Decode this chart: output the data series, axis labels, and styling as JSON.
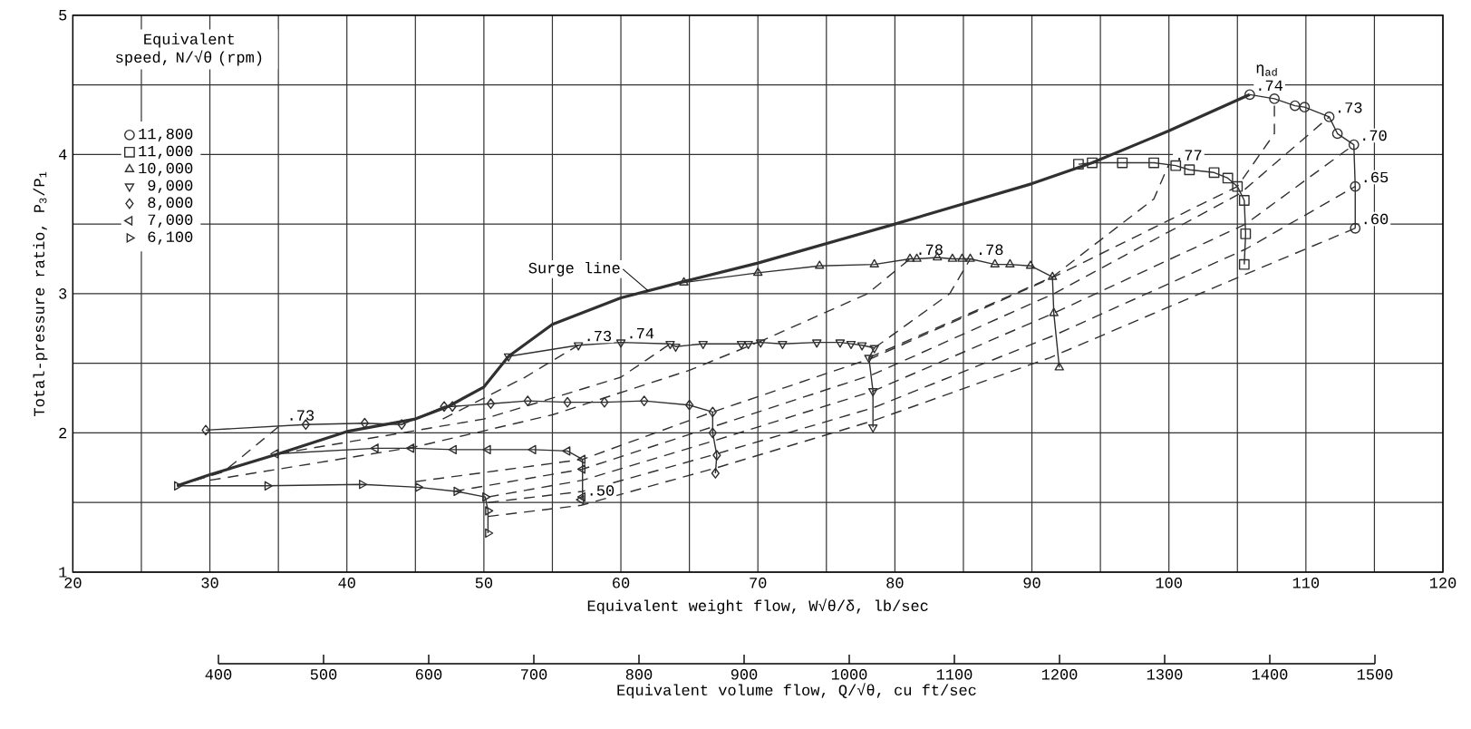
{
  "chart_data": {
    "type": "line",
    "xlabel": "Equivalent weight flow, W√θ/δ, lb/sec",
    "ylabel": "Total-pressure ratio, P$_{3}$/P$_{1}$",
    "x2label": "Equivalent volume flow, Q/√θ, cu ft/sec",
    "legend_title": "Equivalent speed, N/√θ (rpm)",
    "legend": "top left",
    "grid": true,
    "xlim": [
      20,
      120
    ],
    "ylim": [
      1,
      5
    ],
    "xticks": [
      20,
      {
        "value": 25,
        "label": null
      },
      30,
      {
        "value": 35,
        "label": null
      },
      40,
      {
        "value": 45,
        "label": null
      },
      50,
      {
        "value": 55,
        "label": null
      },
      60,
      {
        "value": 65,
        "label": null
      },
      70,
      {
        "value": 75,
        "label": null
      },
      80,
      {
        "value": 85,
        "label": null
      },
      90,
      {
        "value": 95,
        "label": null
      },
      100,
      {
        "value": 105,
        "label": null
      },
      110,
      {
        "value": 115,
        "label": null
      },
      120
    ],
    "yticks": [
      1,
      {
        "value": 1.5,
        "label": null
      },
      2,
      {
        "value": 2.5,
        "label": null
      },
      3,
      {
        "value": 3.5,
        "label": null
      },
      4,
      {
        "value": 4.5,
        "label": null
      },
      5
    ],
    "x2lim": [
      400,
      1500
    ],
    "x2ticks": [
      400,
      500,
      600,
      700,
      800,
      900,
      1000,
      1100,
      1200,
      1300,
      1400,
      1500
    ],
    "series": [
      {
        "name": "11,800",
        "color": "#303030",
        "marker": "circle",
        "line_style": "solid",
        "x": [
          105.9,
          107.7,
          109.2,
          109.9,
          111.7,
          112.3,
          113.5,
          113.6,
          113.6
        ],
        "values": [
          4.43,
          4.4,
          4.35,
          4.34,
          4.27,
          4.15,
          4.07,
          3.77,
          3.47
        ]
      },
      {
        "name": "11,000",
        "color": "#303030",
        "marker": "square",
        "line_style": "solid",
        "x": [
          93.4,
          94.4,
          96.6,
          98.9,
          100.5,
          101.5,
          103.3,
          104.3,
          105.0,
          105.5,
          105.6,
          105.5
        ],
        "values": [
          3.93,
          3.94,
          3.94,
          3.94,
          3.92,
          3.89,
          3.87,
          3.83,
          3.77,
          3.67,
          3.43,
          3.21
        ]
      },
      {
        "name": "10,000",
        "color": "#303030",
        "marker": "triangle",
        "line_style": "solid",
        "x": [
          64.6,
          70.0,
          74.5,
          78.5,
          81.1,
          81.6,
          83.1,
          84.2,
          84.9,
          85.5,
          87.3,
          88.4,
          89.9,
          91.5,
          91.6,
          92.0
        ],
        "values": [
          3.08,
          3.15,
          3.2,
          3.21,
          3.25,
          3.25,
          3.26,
          3.25,
          3.25,
          3.25,
          3.21,
          3.21,
          3.2,
          3.12,
          2.86,
          2.47
        ]
      },
      {
        "name": "9,000",
        "color": "#303030",
        "marker": "triangle-down",
        "line_style": "solid",
        "x": [
          51.8,
          56.9,
          60.0,
          63.6,
          64.0,
          66.0,
          68.8,
          69.3,
          70.2,
          71.8,
          74.3,
          76.0,
          76.8,
          77.6,
          78.5,
          78.1,
          78.4,
          78.4
        ],
        "values": [
          2.55,
          2.63,
          2.65,
          2.64,
          2.62,
          2.64,
          2.64,
          2.64,
          2.65,
          2.64,
          2.65,
          2.65,
          2.64,
          2.63,
          2.61,
          2.54,
          2.3,
          2.04
        ]
      },
      {
        "name": "8,000",
        "color": "#303030",
        "marker": "diamond",
        "line_style": "solid",
        "x": [
          29.7,
          37.0,
          41.3,
          44.0,
          47.1,
          47.7,
          50.5,
          53.2,
          56.1,
          58.8,
          61.7,
          65.0,
          66.7,
          66.7,
          67.0,
          66.9
        ],
        "values": [
          2.02,
          2.06,
          2.07,
          2.06,
          2.19,
          2.19,
          2.21,
          2.23,
          2.22,
          2.22,
          2.23,
          2.2,
          2.15,
          2.0,
          1.84,
          1.71
        ]
      },
      {
        "name": "7,000",
        "color": "#303030",
        "marker": "triangle-left",
        "line_style": "solid",
        "x": [
          34.8,
          42.1,
          44.7,
          47.8,
          50.3,
          53.6,
          56.1,
          57.2,
          57.2,
          57.2,
          57.1
        ],
        "values": [
          1.85,
          1.89,
          1.89,
          1.88,
          1.88,
          1.88,
          1.87,
          1.81,
          1.74,
          1.54,
          1.52
        ]
      },
      {
        "name": "6,100",
        "color": "#303030",
        "marker": "triangle-right",
        "line_style": "solid",
        "x": [
          27.6,
          34.2,
          41.1,
          45.2,
          48.0,
          50.1,
          50.3,
          50.3
        ],
        "values": [
          1.62,
          1.62,
          1.63,
          1.61,
          1.58,
          1.54,
          1.44,
          1.28
        ]
      },
      {
        "color": "#303030",
        "marker": "none",
        "line_style": "solid",
        "x": [
          27.6,
          30,
          35,
          40,
          45,
          47.4,
          50,
          51.8,
          55,
          60,
          64.7,
          70,
          80,
          90,
          94.4,
          100,
          105.9
        ],
        "values": [
          1.62,
          1.7,
          1.85,
          2.01,
          2.1,
          2.19,
          2.33,
          2.55,
          2.78,
          2.97,
          3.09,
          3.22,
          3.5,
          3.79,
          3.94,
          4.17,
          4.43
        ]
      },
      {
        "color": "#303030",
        "marker": "none",
        "line_style": "dashed",
        "x": [
          50.3,
          57.1,
          67,
          78.5,
          91.3,
          105.6,
          113.6
        ],
        "values": [
          1.4,
          1.48,
          1.75,
          2.09,
          2.54,
          3.14,
          3.47
        ]
      },
      {
        "color": "#303030",
        "marker": "none",
        "line_style": "dashed",
        "x": [
          50.3,
          57.2,
          67,
          78.4,
          91.6,
          105.6,
          113.6
        ],
        "values": [
          1.5,
          1.58,
          1.85,
          2.18,
          2.7,
          3.32,
          3.77
        ]
      },
      {
        "color": "#303030",
        "marker": "none",
        "line_style": "dashed",
        "x": [
          50.3,
          57.2,
          67,
          78.4,
          91.6,
          105.6,
          113.5
        ],
        "values": [
          1.54,
          1.66,
          1.95,
          2.3,
          2.86,
          3.5,
          4.07
        ]
      },
      {
        "color": "#303030",
        "marker": "none",
        "line_style": "dashed",
        "x": [
          47.8,
          57.2,
          66.9,
          78.4,
          91.6,
          105.2,
          111.7
        ],
        "values": [
          1.58,
          1.74,
          2.05,
          2.42,
          3.0,
          3.72,
          4.27
        ]
      },
      {
        "color": "#303030",
        "marker": "none",
        "line_style": "dashed",
        "x": [
          45,
          57.2,
          66.7,
          78.4,
          91.6,
          105,
          107.7,
          107.7
        ],
        "values": [
          1.65,
          1.81,
          2.15,
          2.54,
          3.12,
          3.77,
          4.15,
          4.4
        ]
      },
      {
        "color": "#303030",
        "marker": "none",
        "line_style": "dashed",
        "x": [
          78.1,
          91.5,
          98.9,
          100.0
        ],
        "values": [
          2.54,
          3.12,
          3.68,
          3.93
        ]
      },
      {
        "color": "#303030",
        "marker": "none",
        "line_style": "dashed",
        "x": [
          78.5,
          84,
          85.5
        ],
        "values": [
          2.61,
          3.0,
          3.25
        ]
      },
      {
        "color": "#303030",
        "marker": "none",
        "line_style": "dashed",
        "x": [
          70,
          78,
          81.1
        ],
        "values": [
          2.65,
          3.0,
          3.25
        ]
      },
      {
        "color": "#303030",
        "marker": "none",
        "line_style": "dashed",
        "x": [
          27.6,
          31,
          35.2
        ],
        "values": [
          1.62,
          1.72,
          2.06
        ]
      },
      {
        "color": "#303030",
        "marker": "none",
        "line_style": "dashed",
        "x": [
          47,
          53,
          56.9
        ],
        "values": [
          2.1,
          2.4,
          2.63
        ]
      },
      {
        "color": "#303030",
        "marker": "none",
        "line_style": "dashed",
        "x": [
          35,
          50,
          60,
          63.6
        ],
        "values": [
          1.85,
          2.1,
          2.4,
          2.64
        ]
      },
      {
        "color": "#303030",
        "marker": "none",
        "line_style": "dashed",
        "x": [
          30,
          45,
          55,
          65,
          70
        ],
        "values": [
          1.66,
          1.9,
          2.13,
          2.45,
          2.65
        ]
      }
    ],
    "annotations": [
      "η$_{ad}$",
      {
        "text": ".74",
        "x": 105.9,
        "y": 4.43
      },
      {
        "text": ".73",
        "x": 111.7,
        "y": 4.27
      },
      {
        "text": ".70",
        "x": 113.5,
        "y": 4.07
      },
      {
        "text": ".65",
        "x": 113.6,
        "y": 3.77
      },
      {
        "text": ".60",
        "x": 113.6,
        "y": 3.47
      },
      {
        "text": ".77",
        "x": 100.0,
        "y": 3.93
      },
      {
        "text": ".78",
        "x": 81.1,
        "y": 3.25
      },
      {
        "text": ".78",
        "x": 85.5,
        "y": 3.25
      },
      {
        "text": ".73",
        "x": 35.2,
        "y": 2.06
      },
      {
        "text": ".73",
        "x": 56.9,
        "y": 2.63
      },
      {
        "text": ".74",
        "x": 60.0,
        "y": 2.65
      },
      {
        "text": ".50",
        "x": 57.1,
        "y": 1.52
      },
      {
        "text": "Surge line",
        "x": 62,
        "y": 3.02
      }
    ]
  }
}
